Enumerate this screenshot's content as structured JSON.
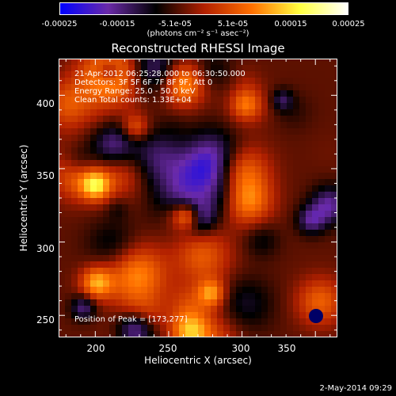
{
  "chart_data": {
    "type": "heatmap",
    "title": "Reconstructed RHESSI Image",
    "xlabel": "Heliocentric X (arcsec)",
    "ylabel": "Heliocentric Y (arcsec)",
    "xlim": [
      175,
      365
    ],
    "ylim": [
      235,
      425
    ],
    "x_ticks": [
      "200",
      "250",
      "300",
      "350"
    ],
    "y_ticks": [
      "250",
      "300",
      "350",
      "400"
    ],
    "colorbar": {
      "ticks": [
        "-0.00025",
        "-0.00015",
        "-5.1e-05",
        "5.1e-05",
        "0.00015",
        "0.00025"
      ],
      "range": [
        -0.00025,
        0.00025
      ],
      "units": "(photons cm⁻² s⁻¹ asec⁻²)",
      "colors": [
        "#0000ff",
        "#6a2aa8",
        "#000000",
        "#b22000",
        "#ff7000",
        "#ffff40",
        "#ffffff"
      ]
    },
    "annotations": [
      "21-Apr-2012 06:25:28.000 to 06:30:50.000",
      "Detectors: 3F 5F 6F 7F 8F 9F, Att 0",
      "Energy Range: 25.0 - 50.0 keV",
      "Clean     Total counts: 1.33E+04"
    ],
    "peak_label": "Position of Peak = [173,277]",
    "peak_position": [
      173,
      277
    ]
  },
  "footer": {
    "timestamp": "2-May-2014 09:29"
  }
}
